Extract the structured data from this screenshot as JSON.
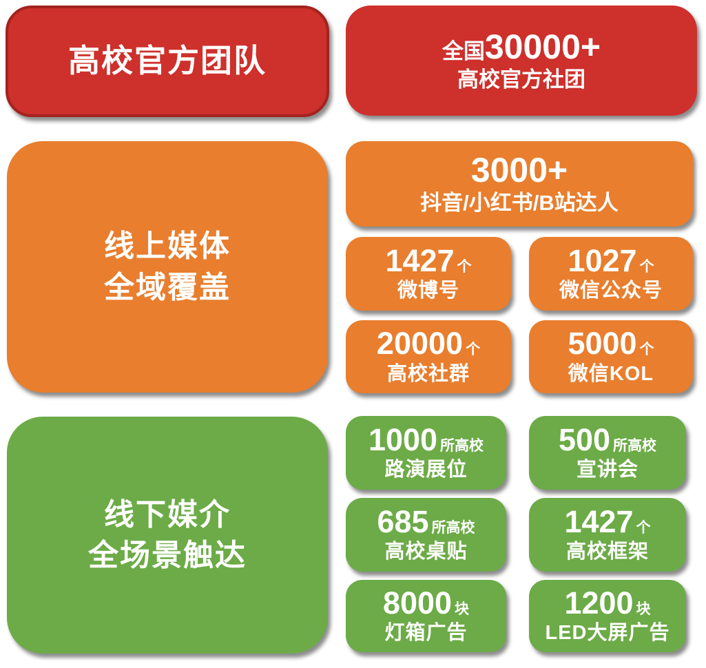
{
  "colors": {
    "red": "#CE302C",
    "red_border": "#A3231F",
    "orange": "#E87E2E",
    "green": "#6CAB47",
    "text": "#FFFFFF",
    "background": "#FFFFFF"
  },
  "official": {
    "title": "高校官方团队",
    "stat_prefix": "全国",
    "stat_number": "30000+",
    "stat_label": "高校官方社团"
  },
  "online": {
    "title_line1": "线上媒体",
    "title_line2": "全域覆盖",
    "hero_number": "3000+",
    "hero_label": "抖音/小红书/B站达人",
    "cells": [
      {
        "number": "1427",
        "unit": "个",
        "label": "微博号"
      },
      {
        "number": "1027",
        "unit": "个",
        "label": "微信公众号"
      },
      {
        "number": "20000",
        "unit": "个",
        "label": "高校社群"
      },
      {
        "number": "5000",
        "unit": "个",
        "label": "微信KOL"
      }
    ]
  },
  "offline": {
    "title_line1": "线下媒介",
    "title_line2": "全场景触达",
    "cells": [
      {
        "number": "1000",
        "unit": "所高校",
        "label": "路演展位"
      },
      {
        "number": "500",
        "unit": "所高校",
        "label": "宣讲会"
      },
      {
        "number": "685",
        "unit": "所高校",
        "label": "高校桌贴"
      },
      {
        "number": "1427",
        "unit": "个",
        "label": "高校框架"
      },
      {
        "number": "8000",
        "unit": "块",
        "label": "灯箱广告"
      },
      {
        "number": "1200",
        "unit": "块",
        "label": "LED大屏广告"
      }
    ]
  }
}
